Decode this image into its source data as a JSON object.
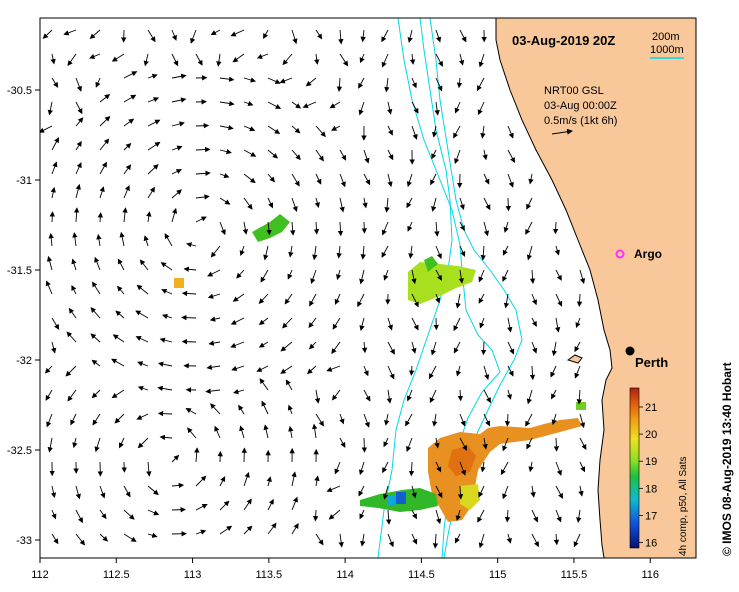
{
  "title": "03-Aug-2019 20Z",
  "depth_legend": {
    "label_200": "200m",
    "label_1000": "1000m",
    "contour_color": "#00d8e8"
  },
  "current_info": {
    "line1": "NRT00 GSL",
    "line2": "03-Aug 00:00Z",
    "line3": "0.5m/s (1kt 6h)"
  },
  "places": {
    "argo": "Argo",
    "perth": "Perth"
  },
  "colorbar": {
    "ticks": [
      "21",
      "20",
      "19",
      "18",
      "17",
      "16"
    ],
    "caption": "4h comp, p50, All Sats",
    "range": [
      15.8,
      21.7
    ]
  },
  "credit": "© IMOS 08-Aug-2019 13:40 Hobart",
  "axes": {
    "x_ticks": [
      "112",
      "112.5",
      "113",
      "113.5",
      "114",
      "114.5",
      "115",
      "115.5",
      "116"
    ],
    "y_ticks": [
      "-30.5",
      "-31",
      "-31.5",
      "-32",
      "-32.5",
      "-33"
    ],
    "x_range": [
      112.0,
      116.3
    ],
    "y_range": [
      -33.1,
      -30.1
    ]
  },
  "colors": {
    "land": "#f8c89a",
    "coastline": "#000000",
    "argo_marker": "#ff30ff",
    "perth_marker": "#000000"
  }
}
